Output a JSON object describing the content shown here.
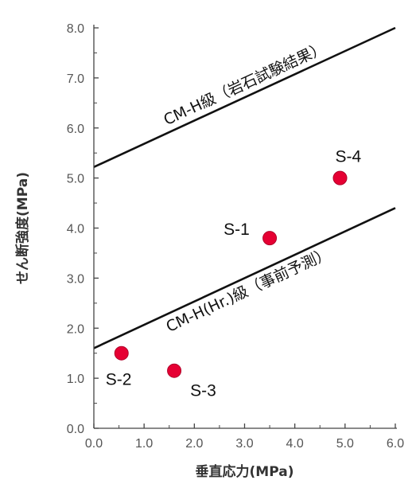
{
  "chart_data": {
    "type": "scatter",
    "title": "",
    "xlabel": "垂直応力(MPa)",
    "ylabel": "せん断強度(MPa)",
    "xlim": [
      0,
      6
    ],
    "ylim": [
      0,
      8
    ],
    "x_ticks": [
      "0.0",
      "1.0",
      "2.0",
      "3.0",
      "4.0",
      "5.0",
      "6.0"
    ],
    "y_ticks": [
      "0.0",
      "1.0",
      "2.0",
      "3.0",
      "4.0",
      "5.0",
      "6.0",
      "7.0",
      "8.0"
    ],
    "grid": false,
    "points": [
      {
        "label": "S-1",
        "x": 3.5,
        "y": 3.8
      },
      {
        "label": "S-2",
        "x": 0.55,
        "y": 1.5
      },
      {
        "label": "S-3",
        "x": 1.6,
        "y": 1.15
      },
      {
        "label": "S-4",
        "x": 4.9,
        "y": 5.0
      }
    ],
    "lines": [
      {
        "label": "CM-H級（岩石試験結果）",
        "x": [
          0,
          6
        ],
        "y": [
          5.22,
          8.0
        ]
      },
      {
        "label": "CM-H(Hr.)級（事前予測）",
        "x": [
          0,
          6
        ],
        "y": [
          1.6,
          4.4
        ]
      }
    ],
    "colors": {
      "point": "#e60033",
      "line": "#111111",
      "axis": "#444444"
    }
  }
}
